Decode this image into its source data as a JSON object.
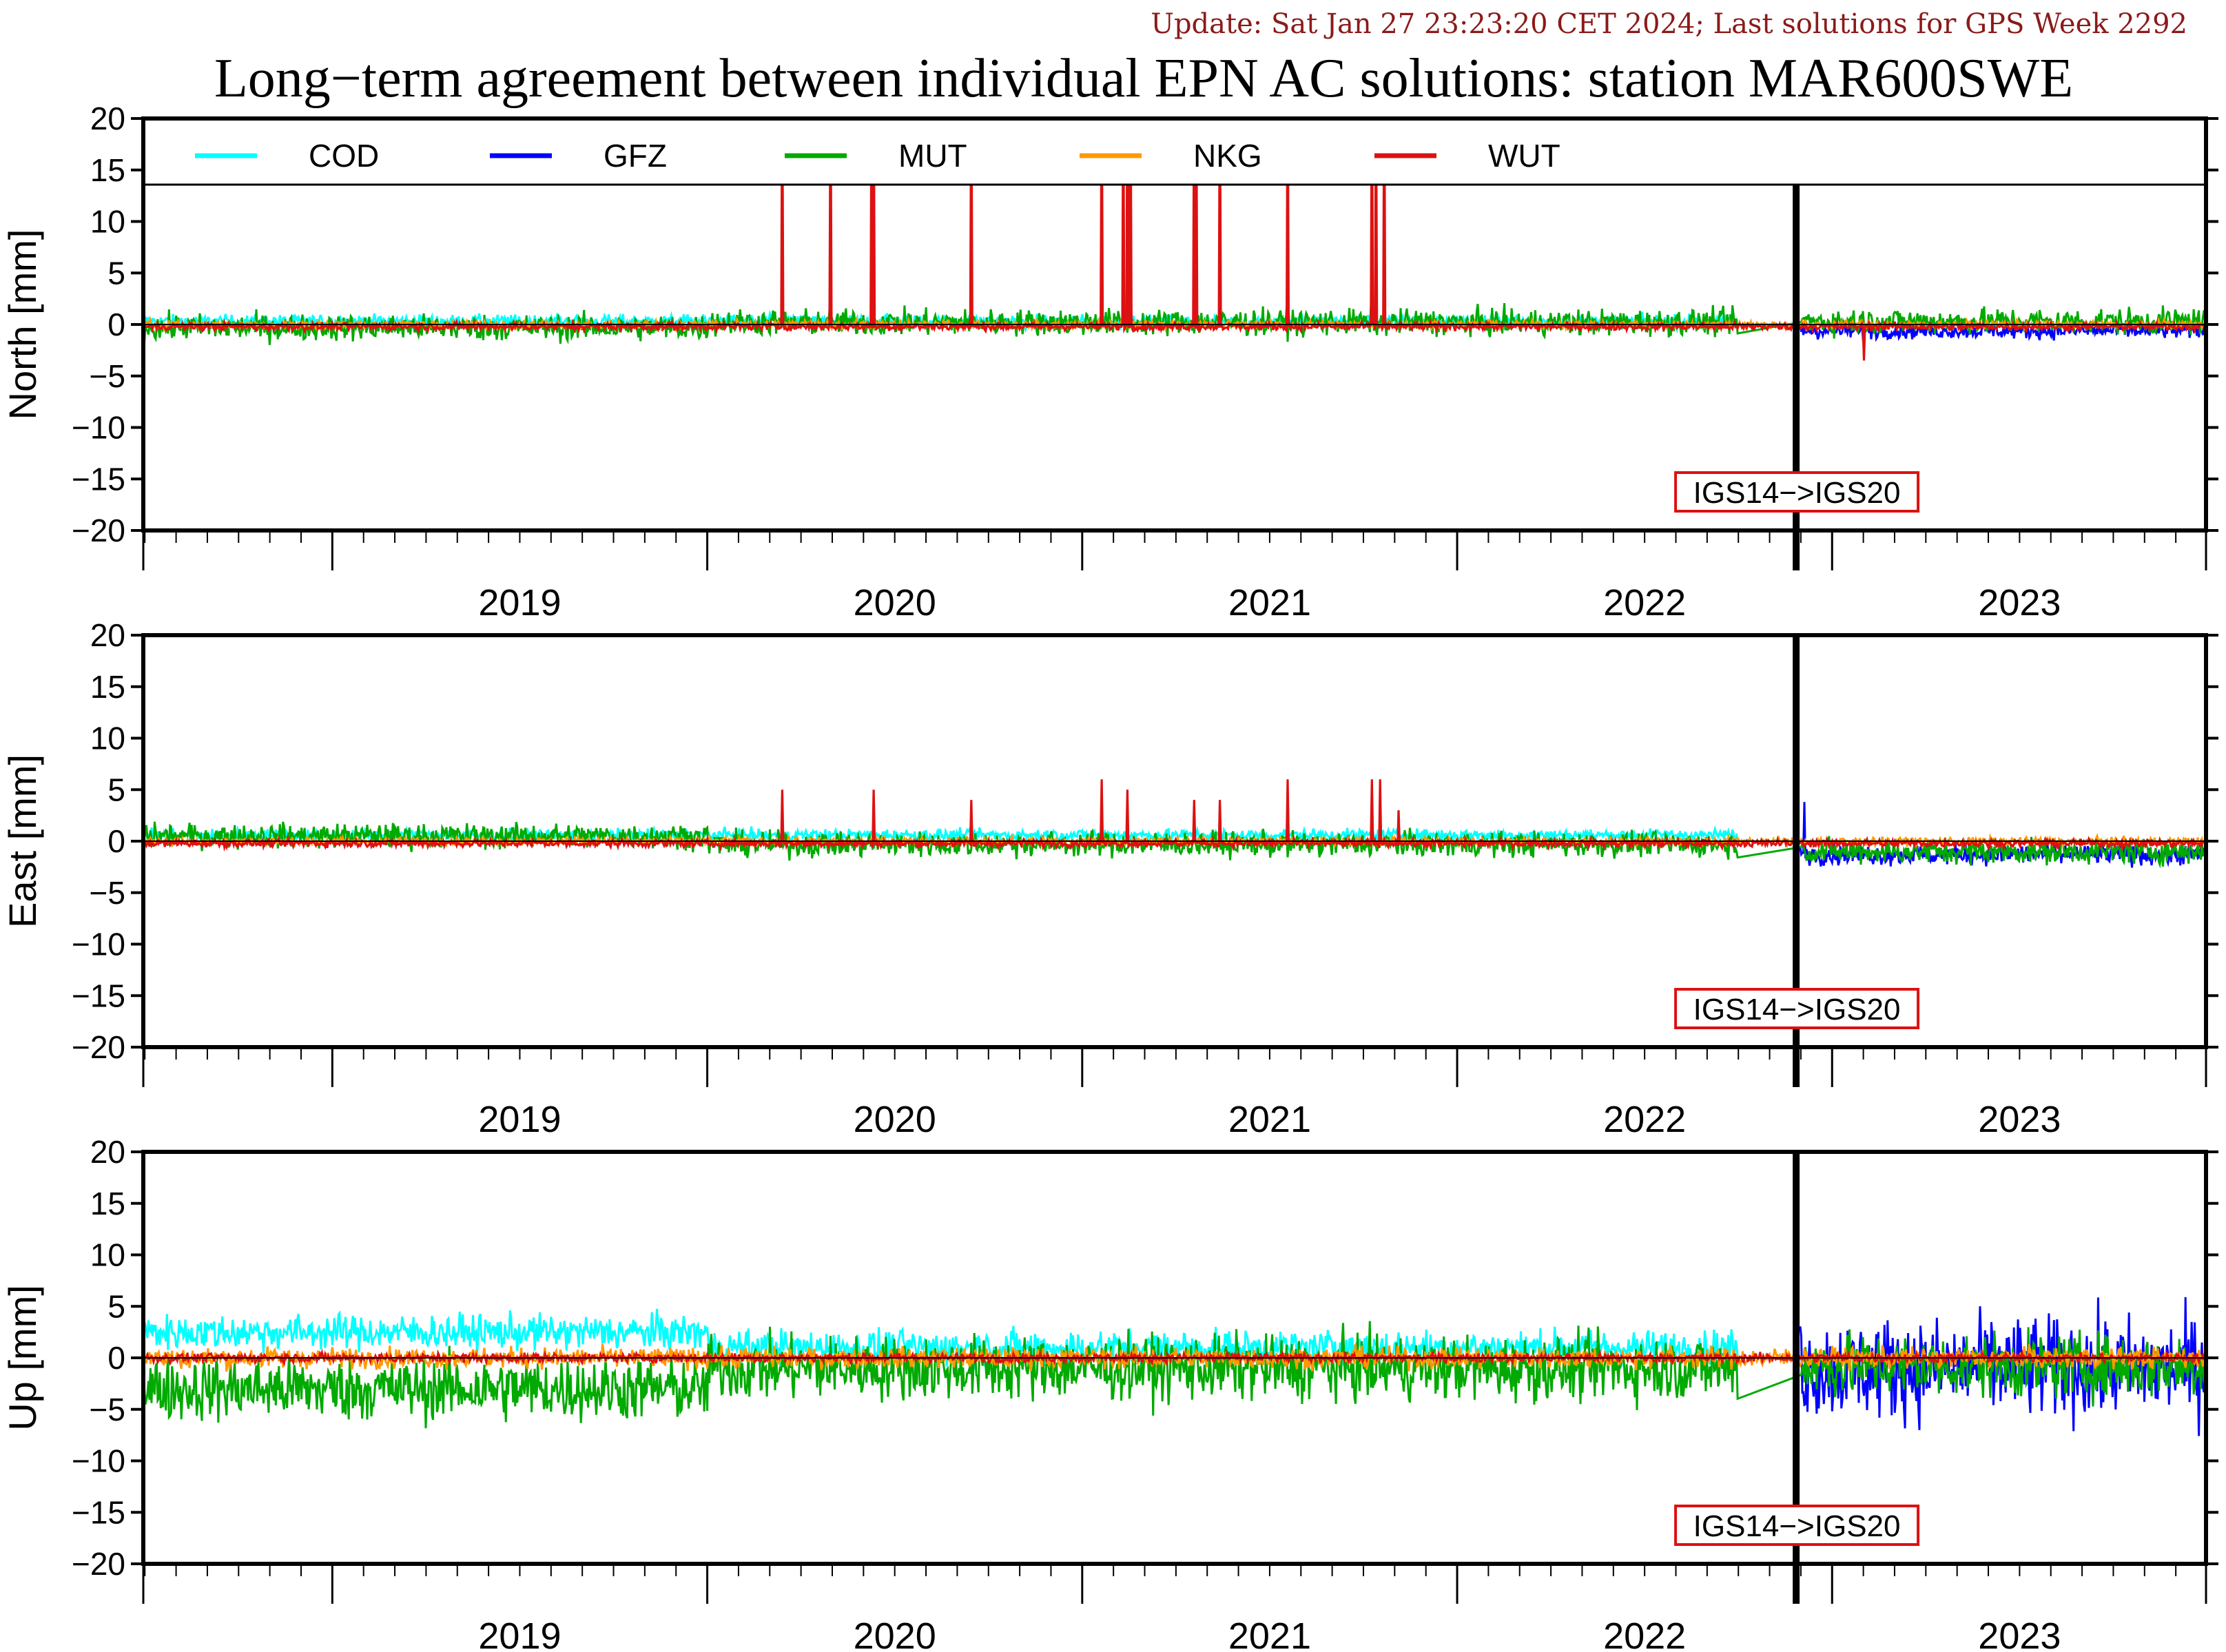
{
  "update_line": "Update: Sat Jan 27 23:23:20 CET 2024; Last solutions for GPS Week 2292",
  "chart_data": {
    "type": "line",
    "title": "Long−term agreement between individual EPN AC solutions: station MAR600SWE",
    "x_range": [
      "2018-07-01",
      "2023-12-31"
    ],
    "x_year_labels": [
      "2019",
      "2020",
      "2021",
      "2022",
      "2023"
    ],
    "ylim": [
      -20,
      20
    ],
    "y_ticks": [
      20,
      15,
      10,
      5,
      0,
      -5,
      -10,
      -15,
      -20
    ],
    "y_tick_labels": [
      "20",
      "15",
      "10",
      "5",
      "0",
      "−5",
      "−10",
      "−15",
      "−20"
    ],
    "frame_change": {
      "date": "2022-11-27",
      "label": "IGS14−>IGS20"
    },
    "legend": [
      {
        "name": "COD",
        "color": "#00ffff"
      },
      {
        "name": "GFZ",
        "color": "#0000ff"
      },
      {
        "name": "MUT",
        "color": "#00aa00"
      },
      {
        "name": "NKG",
        "color": "#ff9900"
      },
      {
        "name": "WUT",
        "color": "#dd1111"
      }
    ],
    "panels": [
      {
        "ylabel": "North [mm]",
        "series": [
          {
            "name": "COD",
            "color": "#00ffff",
            "noise": 0.45,
            "start": "2018-07-01",
            "end": "2022-10-01",
            "offsets": [
              [
                0,
                0.3
              ]
            ]
          },
          {
            "name": "GFZ",
            "color": "#0000ff",
            "noise": 0.55,
            "start": "2022-12-01",
            "end": "2023-12-31",
            "offsets": [
              [
                0,
                -0.6
              ]
            ]
          },
          {
            "name": "MUT",
            "color": "#00aa00",
            "noise": 0.9,
            "start": "2018-07-01",
            "end": "2023-12-31",
            "offsets": [
              [
                0,
                -0.3
              ],
              [
                2020.0,
                0.2
              ],
              [
                2022.9,
                0.3
              ]
            ]
          },
          {
            "name": "NKG",
            "color": "#ff9900",
            "noise": 0.25,
            "start": "2018-07-01",
            "end": "2023-12-31",
            "offsets": [
              [
                0,
                0.0
              ]
            ]
          },
          {
            "name": "WUT",
            "color": "#dd1111",
            "noise": 0.25,
            "start": "2018-07-01",
            "end": "2023-12-31",
            "offsets": [
              [
                0,
                -0.2
              ]
            ],
            "spikes": [
              [
                "2020-03-15",
                25
              ],
              [
                "2020-05-01",
                25
              ],
              [
                "2020-06-10",
                25
              ],
              [
                "2020-06-12",
                25
              ],
              [
                "2020-09-15",
                25
              ],
              [
                "2021-01-20",
                25
              ],
              [
                "2021-02-10",
                25
              ],
              [
                "2021-02-14",
                25
              ],
              [
                "2021-02-17",
                25
              ],
              [
                "2021-04-20",
                25
              ],
              [
                "2021-04-22",
                25
              ],
              [
                "2021-05-15",
                25
              ],
              [
                "2021-07-20",
                25
              ],
              [
                "2021-10-10",
                25
              ],
              [
                "2021-10-14",
                25
              ],
              [
                "2021-10-22",
                25
              ],
              [
                "2023-02-01",
                -3.5
              ]
            ]
          }
        ]
      },
      {
        "ylabel": "East [mm]",
        "series": [
          {
            "name": "COD",
            "color": "#00ffff",
            "noise": 0.4,
            "start": "2018-07-01",
            "end": "2022-10-01",
            "offsets": [
              [
                0,
                0.6
              ]
            ]
          },
          {
            "name": "GFZ",
            "color": "#0000ff",
            "noise": 0.7,
            "start": "2022-12-01",
            "end": "2023-12-31",
            "offsets": [
              [
                0,
                -1.3
              ]
            ],
            "spikes": [
              [
                "2022-12-05",
                3.8
              ]
            ]
          },
          {
            "name": "MUT",
            "color": "#00aa00",
            "noise": 0.85,
            "start": "2018-07-01",
            "end": "2023-12-31",
            "offsets": [
              [
                0,
                0.5
              ],
              [
                2020.0,
                -0.3
              ],
              [
                2022.9,
                -1.0
              ]
            ]
          },
          {
            "name": "NKG",
            "color": "#ff9900",
            "noise": 0.25,
            "start": "2018-07-01",
            "end": "2023-12-31",
            "offsets": [
              [
                0,
                0.0
              ]
            ]
          },
          {
            "name": "WUT",
            "color": "#dd1111",
            "noise": 0.25,
            "start": "2018-07-01",
            "end": "2023-12-31",
            "offsets": [
              [
                0,
                -0.2
              ]
            ],
            "spikes": [
              [
                "2020-03-15",
                5
              ],
              [
                "2020-06-12",
                5
              ],
              [
                "2020-09-15",
                4
              ],
              [
                "2021-01-20",
                6
              ],
              [
                "2021-02-14",
                5
              ],
              [
                "2021-04-20",
                4
              ],
              [
                "2021-05-15",
                4
              ],
              [
                "2021-07-20",
                6
              ],
              [
                "2021-10-10",
                6
              ],
              [
                "2021-10-18",
                6
              ],
              [
                "2021-11-05",
                3
              ]
            ]
          }
        ]
      },
      {
        "ylabel": "Up [mm]",
        "series": [
          {
            "name": "COD",
            "color": "#00ffff",
            "noise": 1.2,
            "start": "2018-07-01",
            "end": "2022-10-01",
            "offsets": [
              [
                0,
                2.5
              ],
              [
                2020.0,
                1.0
              ]
            ]
          },
          {
            "name": "GFZ",
            "color": "#0000ff",
            "noise": 3.5,
            "start": "2022-12-01",
            "end": "2023-12-31",
            "offsets": [
              [
                0,
                -1.0
              ]
            ]
          },
          {
            "name": "MUT",
            "color": "#00aa00",
            "noise": 2.2,
            "start": "2018-07-01",
            "end": "2023-12-31",
            "offsets": [
              [
                0,
                -3.0
              ],
              [
                2020.0,
                -1.0
              ],
              [
                2022.9,
                -0.8
              ]
            ]
          },
          {
            "name": "NKG",
            "color": "#ff9900",
            "noise": 0.7,
            "start": "2018-07-01",
            "end": "2023-12-31",
            "offsets": [
              [
                0,
                0.0
              ]
            ]
          },
          {
            "name": "WUT",
            "color": "#dd1111",
            "noise": 0.3,
            "start": "2018-07-01",
            "end": "2023-12-31",
            "offsets": [
              [
                0,
                0.0
              ]
            ]
          }
        ]
      }
    ]
  }
}
